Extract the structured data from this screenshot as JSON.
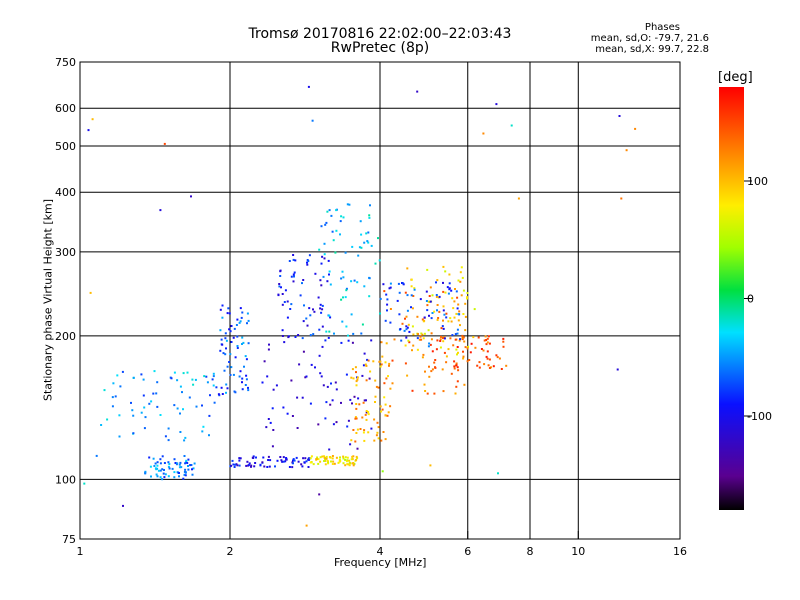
{
  "title": "Tromsø 20170816 22:02:00–22:03:43",
  "subtitle": "RwPretec (8p)",
  "phases": {
    "heading": "Phases",
    "line_o": "mean, sd,O: -79.7, 21.6",
    "line_x": "mean, sd,X:  99.7, 22.8"
  },
  "colorbar": {
    "label": "[deg]",
    "ticks": [
      "100",
      "0",
      "-100"
    ],
    "tick_values": [
      100,
      0,
      -100
    ],
    "range": [
      -180,
      180
    ]
  },
  "chart_data": {
    "type": "scatter",
    "xlabel": "Frequency [MHz]",
    "ylabel": "Stationary phase Virtual Height [km]",
    "xscale": "log",
    "yscale": "log",
    "xlim": [
      1,
      16
    ],
    "ylim": [
      75,
      750
    ],
    "xticks": [
      1,
      2,
      4,
      6,
      8,
      10,
      16
    ],
    "xticklabels": [
      "1",
      "2",
      "4",
      "6",
      "8",
      "10",
      "16"
    ],
    "yticks": [
      75,
      100,
      200,
      300,
      400,
      500,
      600,
      750
    ],
    "yticklabels": [
      "75",
      "100",
      "200",
      "300",
      "400",
      "500",
      "600",
      "750"
    ],
    "grid": true,
    "colorscale": "rainbow",
    "clusters": [
      {
        "x": [
          1.35,
          1.7
        ],
        "y": [
          100,
          112
        ],
        "phase": -60
      },
      {
        "x": [
          2.0,
          2.9
        ],
        "y": [
          106,
          112
        ],
        "phase": -100
      },
      {
        "x": [
          2.9,
          3.6
        ],
        "y": [
          107,
          112
        ],
        "phase": 80
      },
      {
        "x": [
          1.9,
          2.2
        ],
        "y": [
          150,
          240
        ],
        "phase": -70
      },
      {
        "x": [
          2.3,
          3.9
        ],
        "y": [
          115,
          200
        ],
        "phase": -110
      },
      {
        "x": [
          2.5,
          3.2
        ],
        "y": [
          195,
          300
        ],
        "phase": -90
      },
      {
        "x": [
          3.0,
          4.0
        ],
        "y": [
          200,
          380
        ],
        "phase": -40
      },
      {
        "x": [
          3.5,
          4.2
        ],
        "y": [
          120,
          180
        ],
        "phase": 110
      },
      {
        "x": [
          4.0,
          6.0
        ],
        "y": [
          150,
          250
        ],
        "phase": 130
      },
      {
        "x": [
          4.5,
          6.2
        ],
        "y": [
          180,
          280
        ],
        "phase": 90
      },
      {
        "x": [
          5.0,
          7.2
        ],
        "y": [
          170,
          200
        ],
        "phase": 140
      },
      {
        "x": [
          4.0,
          5.8
        ],
        "y": [
          190,
          260
        ],
        "phase": -80
      },
      {
        "x": [
          1.1,
          1.9
        ],
        "y": [
          120,
          170
        ],
        "phase": -50
      }
    ],
    "points": [
      [
        1.48,
        505,
        150
      ],
      [
        2.88,
        665,
        -100
      ],
      [
        4.75,
        650,
        -120
      ],
      [
        6.85,
        612,
        -110
      ],
      [
        12.1,
        578,
        -110
      ],
      [
        2.93,
        565,
        -60
      ],
      [
        12.5,
        490,
        120
      ],
      [
        13.0,
        543,
        120
      ],
      [
        1.06,
        569,
        100
      ],
      [
        1.04,
        540,
        -100
      ],
      [
        6.45,
        531,
        120
      ],
      [
        7.35,
        552,
        -20
      ],
      [
        1.67,
        392,
        -120
      ],
      [
        1.45,
        367,
        -110
      ],
      [
        12.2,
        388,
        130
      ],
      [
        7.6,
        388,
        110
      ],
      [
        1.05,
        246,
        100
      ],
      [
        12.0,
        170,
        -110
      ],
      [
        1.02,
        98,
        -20
      ],
      [
        1.22,
        88,
        -120
      ],
      [
        2.85,
        80,
        110
      ],
      [
        3.02,
        93,
        -140
      ],
      [
        5.05,
        107,
        100
      ],
      [
        4.05,
        104,
        40
      ],
      [
        6.9,
        103,
        -20
      ],
      [
        1.08,
        112,
        -60
      ],
      [
        1.2,
        123,
        -50
      ],
      [
        1.28,
        125,
        -70
      ]
    ]
  }
}
